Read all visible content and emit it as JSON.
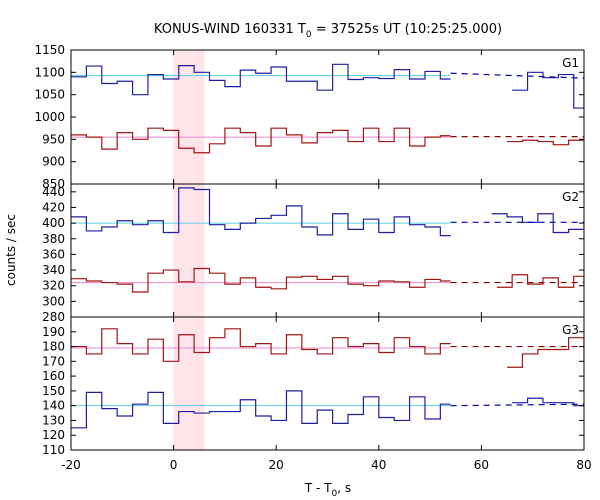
{
  "chart_data": {
    "type": "line",
    "title_prefix": "KONUS-WIND 160331 T",
    "title_sub": "0",
    "title_suffix": " = 37525s UT (10:25:25.000)",
    "ylabel": "counts / sec",
    "xlabel_prefix": "T - T",
    "xlabel_sub": "0",
    "xlabel_suffix": ", s",
    "xlim": [
      -20,
      80
    ],
    "xticks": [
      "-20",
      "0",
      "20",
      "40",
      "60",
      "80"
    ],
    "highlight": {
      "x0": 0,
      "x1": 6,
      "color": "#ffe4ea"
    },
    "colors": {
      "blue_hist": "#1f1f9e",
      "blue_bg": "#5fd0e6",
      "red_hist": "#a01515",
      "red_bg": "#ee88cc",
      "dash_blue": "#0000aa",
      "dash_red": "#8b0000"
    },
    "panels": [
      {
        "name": "G1",
        "ylim": [
          850,
          1150
        ],
        "yticks": [
          "850",
          "900",
          "950",
          "1000",
          "1050",
          "1100",
          "1150"
        ],
        "series": [
          {
            "color": "blue_hist",
            "bg": 1093,
            "bg_color": "blue_bg",
            "edges": [
              -20,
              -17,
              -14,
              -11,
              -8,
              -5,
              -2,
              1,
              4,
              7,
              10,
              13,
              16,
              19,
              22,
              25,
              28,
              31,
              34,
              37,
              40,
              43,
              46,
              49,
              52,
              54
            ],
            "values": [
              1090,
              1114,
              1075,
              1080,
              1050,
              1095,
              1085,
              1115,
              1100,
              1082,
              1068,
              1105,
              1098,
              1112,
              1080,
              1080,
              1060,
              1118,
              1084,
              1088,
              1086,
              1106,
              1085,
              1102,
              1085
            ],
            "edges2": [
              66,
              69,
              72,
              75,
              78,
              80
            ],
            "values2": [
              1060,
              1100,
              1088,
              1095,
              1020,
              1090
            ],
            "dash": {
              "x0": 54,
              "x1": 80,
              "y0": 1098,
              "y1": 1087,
              "color": "dash_blue"
            }
          },
          {
            "color": "red_hist",
            "bg": 955,
            "bg_color": "red_bg",
            "edges": [
              -20,
              -17,
              -14,
              -11,
              -8,
              -5,
              -2,
              1,
              4,
              7,
              10,
              13,
              16,
              19,
              22,
              25,
              28,
              31,
              34,
              37,
              40,
              43,
              46,
              49,
              52,
              54
            ],
            "values": [
              960,
              955,
              928,
              965,
              950,
              975,
              970,
              930,
              920,
              940,
              975,
              965,
              935,
              975,
              960,
              942,
              965,
              970,
              945,
              975,
              945,
              975,
              935,
              955,
              958
            ],
            "edges2": [
              65,
              68,
              71,
              74,
              77,
              80
            ],
            "values2": [
              945,
              948,
              945,
              938,
              948,
              955
            ],
            "dash": {
              "x0": 54,
              "x1": 80,
              "y0": 956,
              "y1": 956,
              "color": "dash_red"
            }
          }
        ]
      },
      {
        "name": "G2",
        "ylim": [
          280,
          450
        ],
        "yticks": [
          "280",
          "300",
          "320",
          "340",
          "360",
          "380",
          "400",
          "420",
          "440"
        ],
        "series": [
          {
            "color": "blue_hist",
            "bg": 400,
            "bg_color": "blue_bg",
            "edges": [
              -20,
              -17,
              -14,
              -11,
              -8,
              -5,
              -2,
              1,
              4,
              7,
              10,
              13,
              16,
              19,
              22,
              25,
              28,
              31,
              34,
              37,
              40,
              43,
              46,
              49,
              52,
              54
            ],
            "values": [
              408,
              390,
              395,
              403,
              398,
              403,
              388,
              445,
              443,
              398,
              392,
              400,
              406,
              410,
              422,
              395,
              385,
              412,
              392,
              405,
              388,
              408,
              398,
              395,
              384
            ],
            "edges2": [
              62,
              65,
              68,
              71,
              74,
              77,
              80
            ],
            "values2": [
              412,
              408,
              401,
              412,
              388,
              392,
              402
            ],
            "dash": {
              "x0": 54,
              "x1": 80,
              "y0": 401,
              "y1": 401,
              "color": "dash_blue"
            }
          },
          {
            "color": "red_hist",
            "bg": 324,
            "bg_color": "red_bg",
            "edges": [
              -20,
              -17,
              -14,
              -11,
              -8,
              -5,
              -2,
              1,
              4,
              7,
              10,
              13,
              16,
              19,
              22,
              25,
              28,
              31,
              34,
              37,
              40,
              43,
              46,
              49,
              52,
              54
            ],
            "values": [
              329,
              326,
              324,
              322,
              312,
              336,
              340,
              325,
              342,
              336,
              322,
              330,
              318,
              316,
              331,
              332,
              328,
              332,
              322,
              320,
              326,
              325,
              318,
              328,
              326
            ],
            "edges2": [
              63,
              66,
              69,
              72,
              75,
              78,
              80
            ],
            "values2": [
              318,
              334,
              322,
              330,
              318,
              332,
              325
            ],
            "dash": {
              "x0": 54,
              "x1": 80,
              "y0": 324,
              "y1": 324,
              "color": "dash_red"
            }
          }
        ]
      },
      {
        "name": "G3",
        "ylim": [
          110,
          200
        ],
        "yticks": [
          "110",
          "120",
          "130",
          "140",
          "150",
          "160",
          "170",
          "180",
          "190"
        ],
        "series": [
          {
            "color": "red_hist",
            "bg": 179,
            "bg_color": "red_bg",
            "edges": [
              -20,
              -17,
              -14,
              -11,
              -8,
              -5,
              -2,
              1,
              4,
              7,
              10,
              13,
              16,
              19,
              22,
              25,
              28,
              31,
              34,
              37,
              40,
              43,
              46,
              49,
              52,
              54
            ],
            "values": [
              180,
              175,
              192,
              182,
              175,
              185,
              170,
              188,
              176,
              186,
              192,
              180,
              182,
              175,
              188,
              178,
              175,
              186,
              180,
              182,
              176,
              186,
              180,
              175,
              182
            ],
            "edges2": [
              65,
              68,
              71,
              74,
              77,
              80
            ],
            "values2": [
              166,
              175,
              178,
              178,
              186,
              172
            ],
            "dash": {
              "x0": 54,
              "x1": 80,
              "y0": 180,
              "y1": 180,
              "color": "dash_red"
            }
          },
          {
            "color": "blue_hist",
            "bg": 140,
            "bg_color": "blue_bg",
            "edges": [
              -20,
              -17,
              -14,
              -11,
              -8,
              -5,
              -2,
              1,
              4,
              7,
              10,
              13,
              16,
              19,
              22,
              25,
              28,
              31,
              34,
              37,
              40,
              43,
              46,
              49,
              52,
              54
            ],
            "values": [
              125,
              149,
              138,
              133,
              141,
              149,
              128,
              136,
              135,
              136,
              136,
              144,
              133,
              130,
              150,
              128,
              137,
              128,
              134,
              146,
              132,
              130,
              146,
              131,
              141
            ],
            "edges2": [
              66,
              69,
              72,
              75,
              78,
              80
            ],
            "values2": [
              142,
              145,
              142,
              142,
              140,
              140
            ],
            "dash": {
              "x0": 54,
              "x1": 80,
              "y0": 140,
              "y1": 141,
              "color": "dash_blue"
            }
          }
        ]
      }
    ]
  }
}
